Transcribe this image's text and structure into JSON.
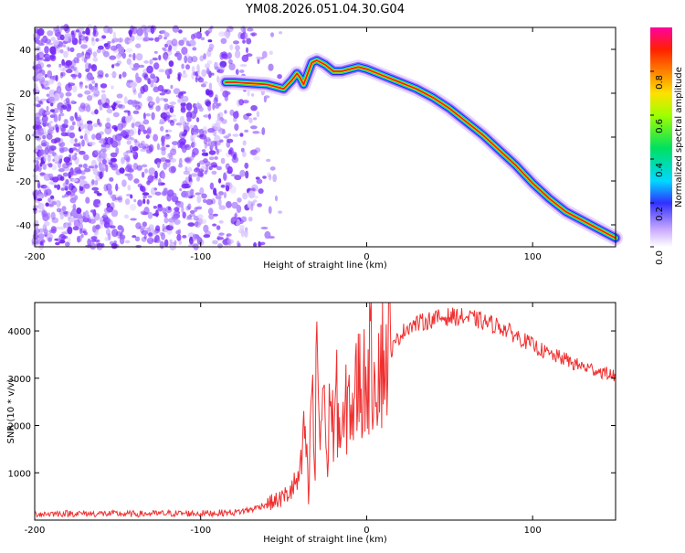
{
  "title": "YM08.2026.051.04.30.G04",
  "chart_data": [
    {
      "type": "heatmap",
      "name": "spectrogram",
      "xlabel": "Height of straight line (km)",
      "ylabel": "Frequency (Hz)",
      "xlim": [
        -200,
        150
      ],
      "ylim": [
        -50,
        50
      ],
      "xticks": [
        -200,
        -100,
        0,
        100
      ],
      "yticks": [
        -40,
        -20,
        0,
        20,
        40
      ],
      "colorbar": {
        "label": "Normalized spectral amplitude",
        "range": [
          0,
          1
        ],
        "ticks": [
          0.0,
          0.2,
          0.4,
          0.6,
          0.8
        ],
        "tick_labels": [
          "0.0",
          "0.2",
          "0.4",
          "0.6",
          "0.8"
        ]
      },
      "ridge": {
        "x": [
          -85,
          -80,
          -70,
          -60,
          -55,
          -50,
          -45,
          -42,
          -40,
          -38,
          -35,
          -33,
          -30,
          -25,
          -20,
          -15,
          -10,
          -5,
          0,
          10,
          20,
          30,
          40,
          50,
          60,
          70,
          80,
          90,
          100,
          110,
          120,
          130,
          140,
          150
        ],
        "y": [
          25,
          25,
          24.5,
          24,
          23,
          22,
          26,
          29,
          27,
          24,
          30,
          34,
          35,
          33,
          30,
          30,
          31,
          32,
          31,
          28,
          25,
          22,
          18,
          13,
          7,
          1,
          -6,
          -13,
          -21,
          -28,
          -34,
          -38,
          -42,
          -46
        ]
      },
      "noise_region_x": [
        -200,
        -60
      ]
    },
    {
      "type": "line",
      "name": "snr",
      "xlabel": "Height of straight line (km)",
      "ylabel": "SNR (10 * v/v)",
      "xlim": [
        -200,
        150
      ],
      "ylim": [
        0,
        4600
      ],
      "xticks": [
        -200,
        -100,
        0,
        100
      ],
      "yticks": [
        1000,
        2000,
        3000,
        4000
      ],
      "series": [
        {
          "name": "SNR",
          "color": "#f03030",
          "x": [
            -200,
            -180,
            -160,
            -140,
            -120,
            -100,
            -90,
            -80,
            -75,
            -70,
            -65,
            -60,
            -55,
            -50,
            -45,
            -40,
            -37,
            -35,
            -33,
            -31,
            -30,
            -28,
            -26,
            -24,
            -22,
            -20,
            -18,
            -15,
            -12,
            -10,
            -8,
            -5,
            -2,
            0,
            5,
            10,
            15,
            20,
            25,
            30,
            35,
            40,
            45,
            50,
            55,
            60,
            65,
            70,
            75,
            80,
            85,
            90,
            95,
            100,
            105,
            110,
            115,
            120,
            125,
            130,
            135,
            140,
            145,
            150
          ],
          "y": [
            130,
            140,
            135,
            130,
            140,
            140,
            150,
            160,
            190,
            220,
            280,
            350,
            400,
            480,
            650,
            900,
            2000,
            400,
            3000,
            800,
            4400,
            1500,
            3200,
            1000,
            2800,
            1800,
            2500,
            1600,
            2400,
            2600,
            2300,
            3000,
            2800,
            3200,
            3300,
            3400,
            3600,
            3900,
            4100,
            4150,
            4200,
            4250,
            4280,
            4300,
            4300,
            4280,
            4250,
            4200,
            4150,
            4100,
            4000,
            3900,
            3800,
            3700,
            3600,
            3500,
            3450,
            3400,
            3300,
            3250,
            3200,
            3150,
            3100,
            3050
          ]
        }
      ]
    }
  ]
}
